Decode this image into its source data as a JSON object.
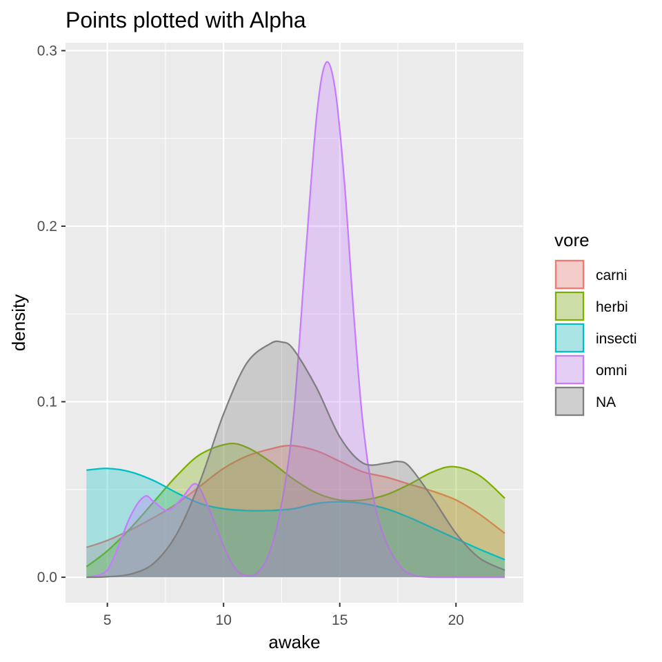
{
  "chart_data": {
    "type": "area",
    "title": "Points plotted with Alpha",
    "xlabel": "awake",
    "ylabel": "density",
    "xlim": [
      3.2,
      22.9
    ],
    "ylim": [
      -0.0145,
      0.3045
    ],
    "x_ticks": [
      5,
      10,
      15,
      20
    ],
    "y_ticks": [
      0.0,
      0.1,
      0.2,
      0.3
    ],
    "x_tick_labels": [
      "5",
      "10",
      "15",
      "20"
    ],
    "y_tick_labels": [
      "0.0",
      "0.1",
      "0.2",
      "0.3"
    ],
    "grid": true,
    "fill_alpha": 0.3,
    "legend": {
      "title": "vore",
      "position": "right"
    },
    "series": [
      {
        "name": "carni",
        "color": "#F8766D",
        "points": [
          [
            4.1,
            0.017
          ],
          [
            5,
            0.021
          ],
          [
            6,
            0.027
          ],
          [
            7,
            0.034
          ],
          [
            8,
            0.042
          ],
          [
            9,
            0.052
          ],
          [
            10,
            0.062
          ],
          [
            11,
            0.069
          ],
          [
            12,
            0.073
          ],
          [
            12.9,
            0.075
          ],
          [
            14,
            0.072
          ],
          [
            15,
            0.066
          ],
          [
            16,
            0.06
          ],
          [
            17,
            0.057
          ],
          [
            18,
            0.053
          ],
          [
            19,
            0.049
          ],
          [
            20,
            0.044
          ],
          [
            21,
            0.036
          ],
          [
            22.1,
            0.025
          ]
        ]
      },
      {
        "name": "herbi",
        "color": "#7CAE00",
        "points": [
          [
            4.1,
            0.006
          ],
          [
            5,
            0.015
          ],
          [
            6,
            0.028
          ],
          [
            7,
            0.043
          ],
          [
            8,
            0.058
          ],
          [
            9,
            0.07
          ],
          [
            10.2,
            0.076
          ],
          [
            11,
            0.074
          ],
          [
            12,
            0.066
          ],
          [
            13,
            0.056
          ],
          [
            14,
            0.048
          ],
          [
            15,
            0.044
          ],
          [
            16,
            0.044
          ],
          [
            17,
            0.047
          ],
          [
            18,
            0.053
          ],
          [
            19,
            0.06
          ],
          [
            19.9,
            0.063
          ],
          [
            21,
            0.058
          ],
          [
            22.1,
            0.045
          ]
        ]
      },
      {
        "name": "insecti",
        "color": "#00BFC4",
        "points": [
          [
            4.1,
            0.061
          ],
          [
            5,
            0.062
          ],
          [
            6,
            0.06
          ],
          [
            7,
            0.055
          ],
          [
            8,
            0.048
          ],
          [
            9,
            0.042
          ],
          [
            10,
            0.039
          ],
          [
            11,
            0.038
          ],
          [
            12,
            0.038
          ],
          [
            13,
            0.039
          ],
          [
            14,
            0.042
          ],
          [
            15,
            0.043
          ],
          [
            16,
            0.042
          ],
          [
            17,
            0.039
          ],
          [
            18,
            0.034
          ],
          [
            19,
            0.028
          ],
          [
            20,
            0.022
          ],
          [
            21,
            0.016
          ],
          [
            22.1,
            0.01
          ]
        ]
      },
      {
        "name": "omni",
        "color": "#C77CFF",
        "points": [
          [
            4.1,
            0.0
          ],
          [
            5,
            0.004
          ],
          [
            6,
            0.035
          ],
          [
            6.6,
            0.046
          ],
          [
            7,
            0.043
          ],
          [
            7.6,
            0.038
          ],
          [
            8.2,
            0.045
          ],
          [
            8.7,
            0.053
          ],
          [
            9,
            0.05
          ],
          [
            9.5,
            0.035
          ],
          [
            10,
            0.018
          ],
          [
            10.5,
            0.005
          ],
          [
            11,
            0.001
          ],
          [
            11.5,
            0.003
          ],
          [
            12,
            0.015
          ],
          [
            12.5,
            0.042
          ],
          [
            13,
            0.09
          ],
          [
            13.5,
            0.178
          ],
          [
            14,
            0.262
          ],
          [
            14.4,
            0.293
          ],
          [
            14.8,
            0.278
          ],
          [
            15.2,
            0.225
          ],
          [
            15.6,
            0.15
          ],
          [
            16,
            0.087
          ],
          [
            16.5,
            0.042
          ],
          [
            17,
            0.02
          ],
          [
            17.5,
            0.008
          ],
          [
            18,
            0.002
          ],
          [
            19,
            0.0
          ],
          [
            22.1,
            0.0
          ]
        ]
      },
      {
        "name": "NA",
        "color": "#7F7F7F",
        "points": [
          [
            4.1,
            0.0
          ],
          [
            5,
            0.0003
          ],
          [
            6,
            0.0018
          ],
          [
            7,
            0.008
          ],
          [
            8,
            0.025
          ],
          [
            9,
            0.055
          ],
          [
            10,
            0.093
          ],
          [
            11,
            0.122
          ],
          [
            12,
            0.133
          ],
          [
            12.5,
            0.134
          ],
          [
            13,
            0.13
          ],
          [
            14,
            0.108
          ],
          [
            15,
            0.08
          ],
          [
            16,
            0.065
          ],
          [
            17,
            0.065
          ],
          [
            17.5,
            0.066
          ],
          [
            18,
            0.063
          ],
          [
            19,
            0.045
          ],
          [
            20,
            0.025
          ],
          [
            21,
            0.011
          ],
          [
            22.1,
            0.004
          ]
        ]
      }
    ]
  }
}
